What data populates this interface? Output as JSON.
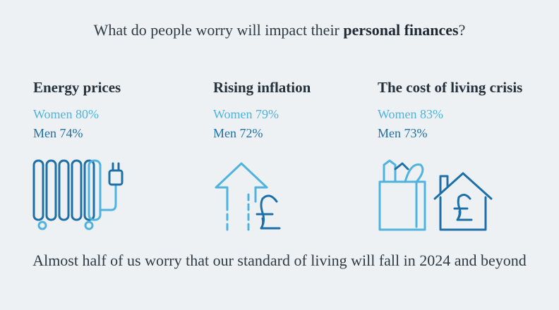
{
  "header": {
    "title_prefix": "What do people worry will impact their ",
    "title_bold": "personal finances",
    "title_suffix": "?"
  },
  "columns": [
    {
      "heading": "Energy prices",
      "women": "Women 80%",
      "men": "Men 74%",
      "icon": "radiator-icon"
    },
    {
      "heading": "Rising inflation",
      "women": "Women 79%",
      "men": "Men 72%",
      "icon": "rising-arrow-pound-icon"
    },
    {
      "heading": "The cost of living crisis",
      "women": "Women 83%",
      "men": "Men 73%",
      "icon": "groceries-house-pound-icon"
    }
  ],
  "footer": {
    "text": "Almost half of us worry that our standard of living will fall in 2024 and beyond"
  },
  "colors": {
    "light_blue": "#4fb3dd",
    "dark_blue": "#1d6fa8",
    "background": "#eef1f4"
  }
}
